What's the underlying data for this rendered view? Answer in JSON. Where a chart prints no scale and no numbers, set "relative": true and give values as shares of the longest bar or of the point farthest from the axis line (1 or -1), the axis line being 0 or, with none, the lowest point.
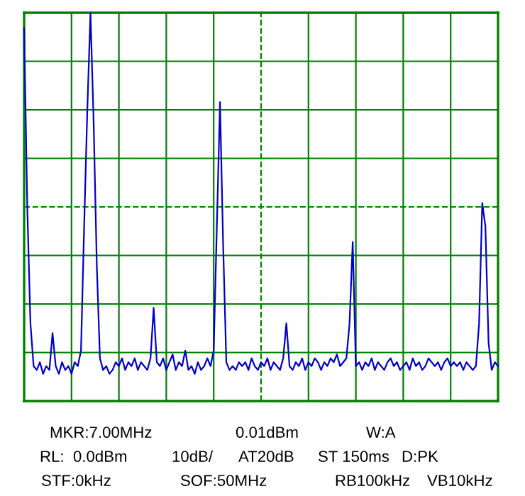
{
  "chart_data": {
    "type": "line",
    "relative": true,
    "grid": true,
    "marker": "none",
    "line_style": "solid",
    "categories": [
      null,
      null,
      null,
      null,
      null,
      null,
      null,
      null,
      null,
      null,
      null,
      null,
      null,
      null,
      null,
      null,
      null,
      null,
      null,
      null,
      null,
      null,
      null,
      null,
      null,
      null,
      null,
      null,
      null,
      null,
      null,
      null,
      null,
      null,
      null,
      null,
      null,
      null,
      null,
      null,
      null,
      null,
      null,
      null,
      null,
      null,
      null,
      null,
      null,
      null,
      null,
      null,
      null,
      null,
      null,
      null,
      null,
      null,
      null,
      null,
      null,
      null,
      null,
      null,
      null,
      null,
      null,
      null,
      null,
      null,
      null,
      null,
      null,
      null,
      null,
      null,
      null,
      null,
      null,
      null,
      null,
      null,
      null,
      null,
      null,
      null,
      null,
      null,
      null,
      null,
      null,
      null,
      null,
      null,
      null,
      null,
      null,
      null,
      null,
      null,
      null,
      null,
      null,
      null,
      null,
      null,
      null,
      null,
      null,
      null,
      null,
      null,
      null,
      null,
      null,
      null,
      null,
      null,
      null,
      null,
      null,
      null,
      null,
      null,
      null,
      null,
      null,
      null,
      null,
      null,
      null,
      null,
      null,
      null,
      null,
      null,
      null,
      null,
      null,
      null,
      null,
      null,
      null,
      null,
      null,
      null,
      null,
      null,
      null,
      null,
      null
    ],
    "series": [
      {
        "color": "#0000cc",
        "values": [
          0.96,
          0.5,
          0.2,
          0.09,
          0.08,
          0.1,
          0.07,
          0.09,
          0.08,
          0.175,
          0.09,
          0.07,
          0.1,
          0.08,
          0.09,
          0.07,
          0.1,
          0.09,
          0.13,
          0.45,
          0.75,
          1.0,
          0.72,
          0.35,
          0.11,
          0.08,
          0.09,
          0.07,
          0.08,
          0.1,
          0.09,
          0.11,
          0.08,
          0.1,
          0.09,
          0.11,
          0.08,
          0.1,
          0.09,
          0.08,
          0.11,
          0.24,
          0.1,
          0.09,
          0.11,
          0.08,
          0.1,
          0.12,
          0.08,
          0.1,
          0.09,
          0.13,
          0.08,
          0.09,
          0.07,
          0.1,
          0.08,
          0.09,
          0.11,
          0.09,
          0.13,
          0.45,
          0.77,
          0.4,
          0.1,
          0.08,
          0.09,
          0.08,
          0.1,
          0.09,
          0.1,
          0.08,
          0.11,
          0.09,
          0.08,
          0.1,
          0.09,
          0.11,
          0.08,
          0.1,
          0.09,
          0.08,
          0.11,
          0.2,
          0.09,
          0.08,
          0.1,
          0.09,
          0.11,
          0.08,
          0.1,
          0.09,
          0.11,
          0.1,
          0.08,
          0.1,
          0.09,
          0.11,
          0.1,
          0.12,
          0.09,
          0.1,
          0.11,
          0.2,
          0.41,
          0.09,
          0.1,
          0.08,
          0.1,
          0.09,
          0.11,
          0.08,
          0.1,
          0.09,
          0.08,
          0.1,
          0.11,
          0.09,
          0.1,
          0.08,
          0.09,
          0.1,
          0.08,
          0.11,
          0.09,
          0.1,
          0.08,
          0.09,
          0.11,
          0.1,
          0.09,
          0.1,
          0.08,
          0.1,
          0.11,
          0.09,
          0.1,
          0.09,
          0.1,
          0.08,
          0.1,
          0.09,
          0.08,
          0.09,
          0.2,
          0.51,
          0.45,
          0.15,
          0.08,
          0.1,
          0.09
        ]
      }
    ],
    "ref_lines": [
      {
        "axis": "y",
        "value": 0.5,
        "color": "#008000",
        "line_style": "dashed"
      }
    ],
    "annotations": [
      "MKR:7.00MHz",
      "0.01dBm",
      "W:A",
      "RL:  0.0dBm",
      "10dB/",
      "AT20dB",
      "ST 150ms",
      "D:PK",
      "STF:0kHz",
      "SOF:50MHz",
      "RB100kHz",
      "VB10kHz"
    ]
  }
}
